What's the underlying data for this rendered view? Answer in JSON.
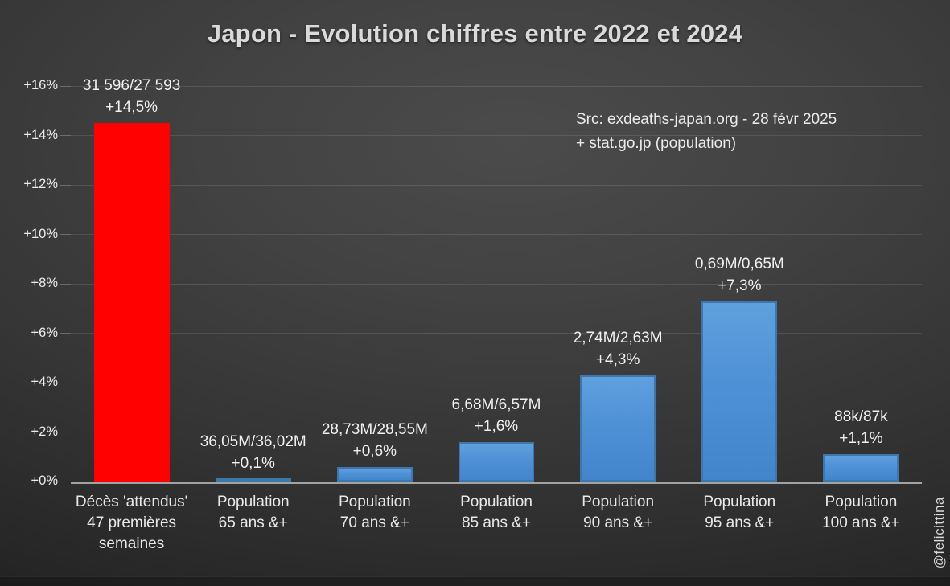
{
  "title": "Japon - Evolution chiffres entre 2022 et 2024",
  "source": {
    "line1": "Src: exdeaths-japan.org - 28 févr 2025",
    "line2": "+ stat.go.jp (population)"
  },
  "watermark": "@felicittina",
  "colors": {
    "background_center": "#4b4b4b",
    "background_edge": "#1e1e1e",
    "red_bar": "#fe0100",
    "blue_bar_top": "#5fa0de",
    "blue_bar_bottom": "#4385cb",
    "blue_bar_border": "#3e76ad",
    "baseline": "#a2a2a2",
    "text": "#eaeaea"
  },
  "chart_data": {
    "type": "bar",
    "title": "Japon - Evolution chiffres entre 2022 et 2024",
    "xlabel": "",
    "ylabel": "",
    "ylim": [
      0,
      16
    ],
    "ytick_step": 2,
    "ytick_labels": [
      "+0%",
      "+2%",
      "+4%",
      "+6%",
      "+8%",
      "+10%",
      "+12%",
      "+14%",
      "+16%"
    ],
    "grid": true,
    "legend": "none",
    "categories": [
      [
        "Décès 'attendus'",
        "47 premières",
        "semaines"
      ],
      [
        "Population",
        "65 ans &+"
      ],
      [
        "Population",
        "70 ans &+"
      ],
      [
        "Population",
        "85 ans &+"
      ],
      [
        "Population",
        "90 ans &+"
      ],
      [
        "Population",
        "95 ans &+"
      ],
      [
        "Population",
        "100 ans &+"
      ]
    ],
    "values": [
      14.5,
      0.1,
      0.6,
      1.6,
      4.3,
      7.3,
      1.1
    ],
    "bar_labels": [
      [
        "31 596/27 593",
        "+14,5%"
      ],
      [
        "36,05M/36,02M",
        "+0,1%"
      ],
      [
        "28,73M/28,55M",
        "+0,6%"
      ],
      [
        "6,68M/6,57M",
        "+1,6%"
      ],
      [
        "2,74M/2,63M",
        "+4,3%"
      ],
      [
        "0,69M/0,65M",
        "+7,3%"
      ],
      [
        "88k/87k",
        "+1,1%"
      ]
    ],
    "bar_colors": [
      "red",
      "blue",
      "blue",
      "blue",
      "blue",
      "blue",
      "blue"
    ]
  }
}
